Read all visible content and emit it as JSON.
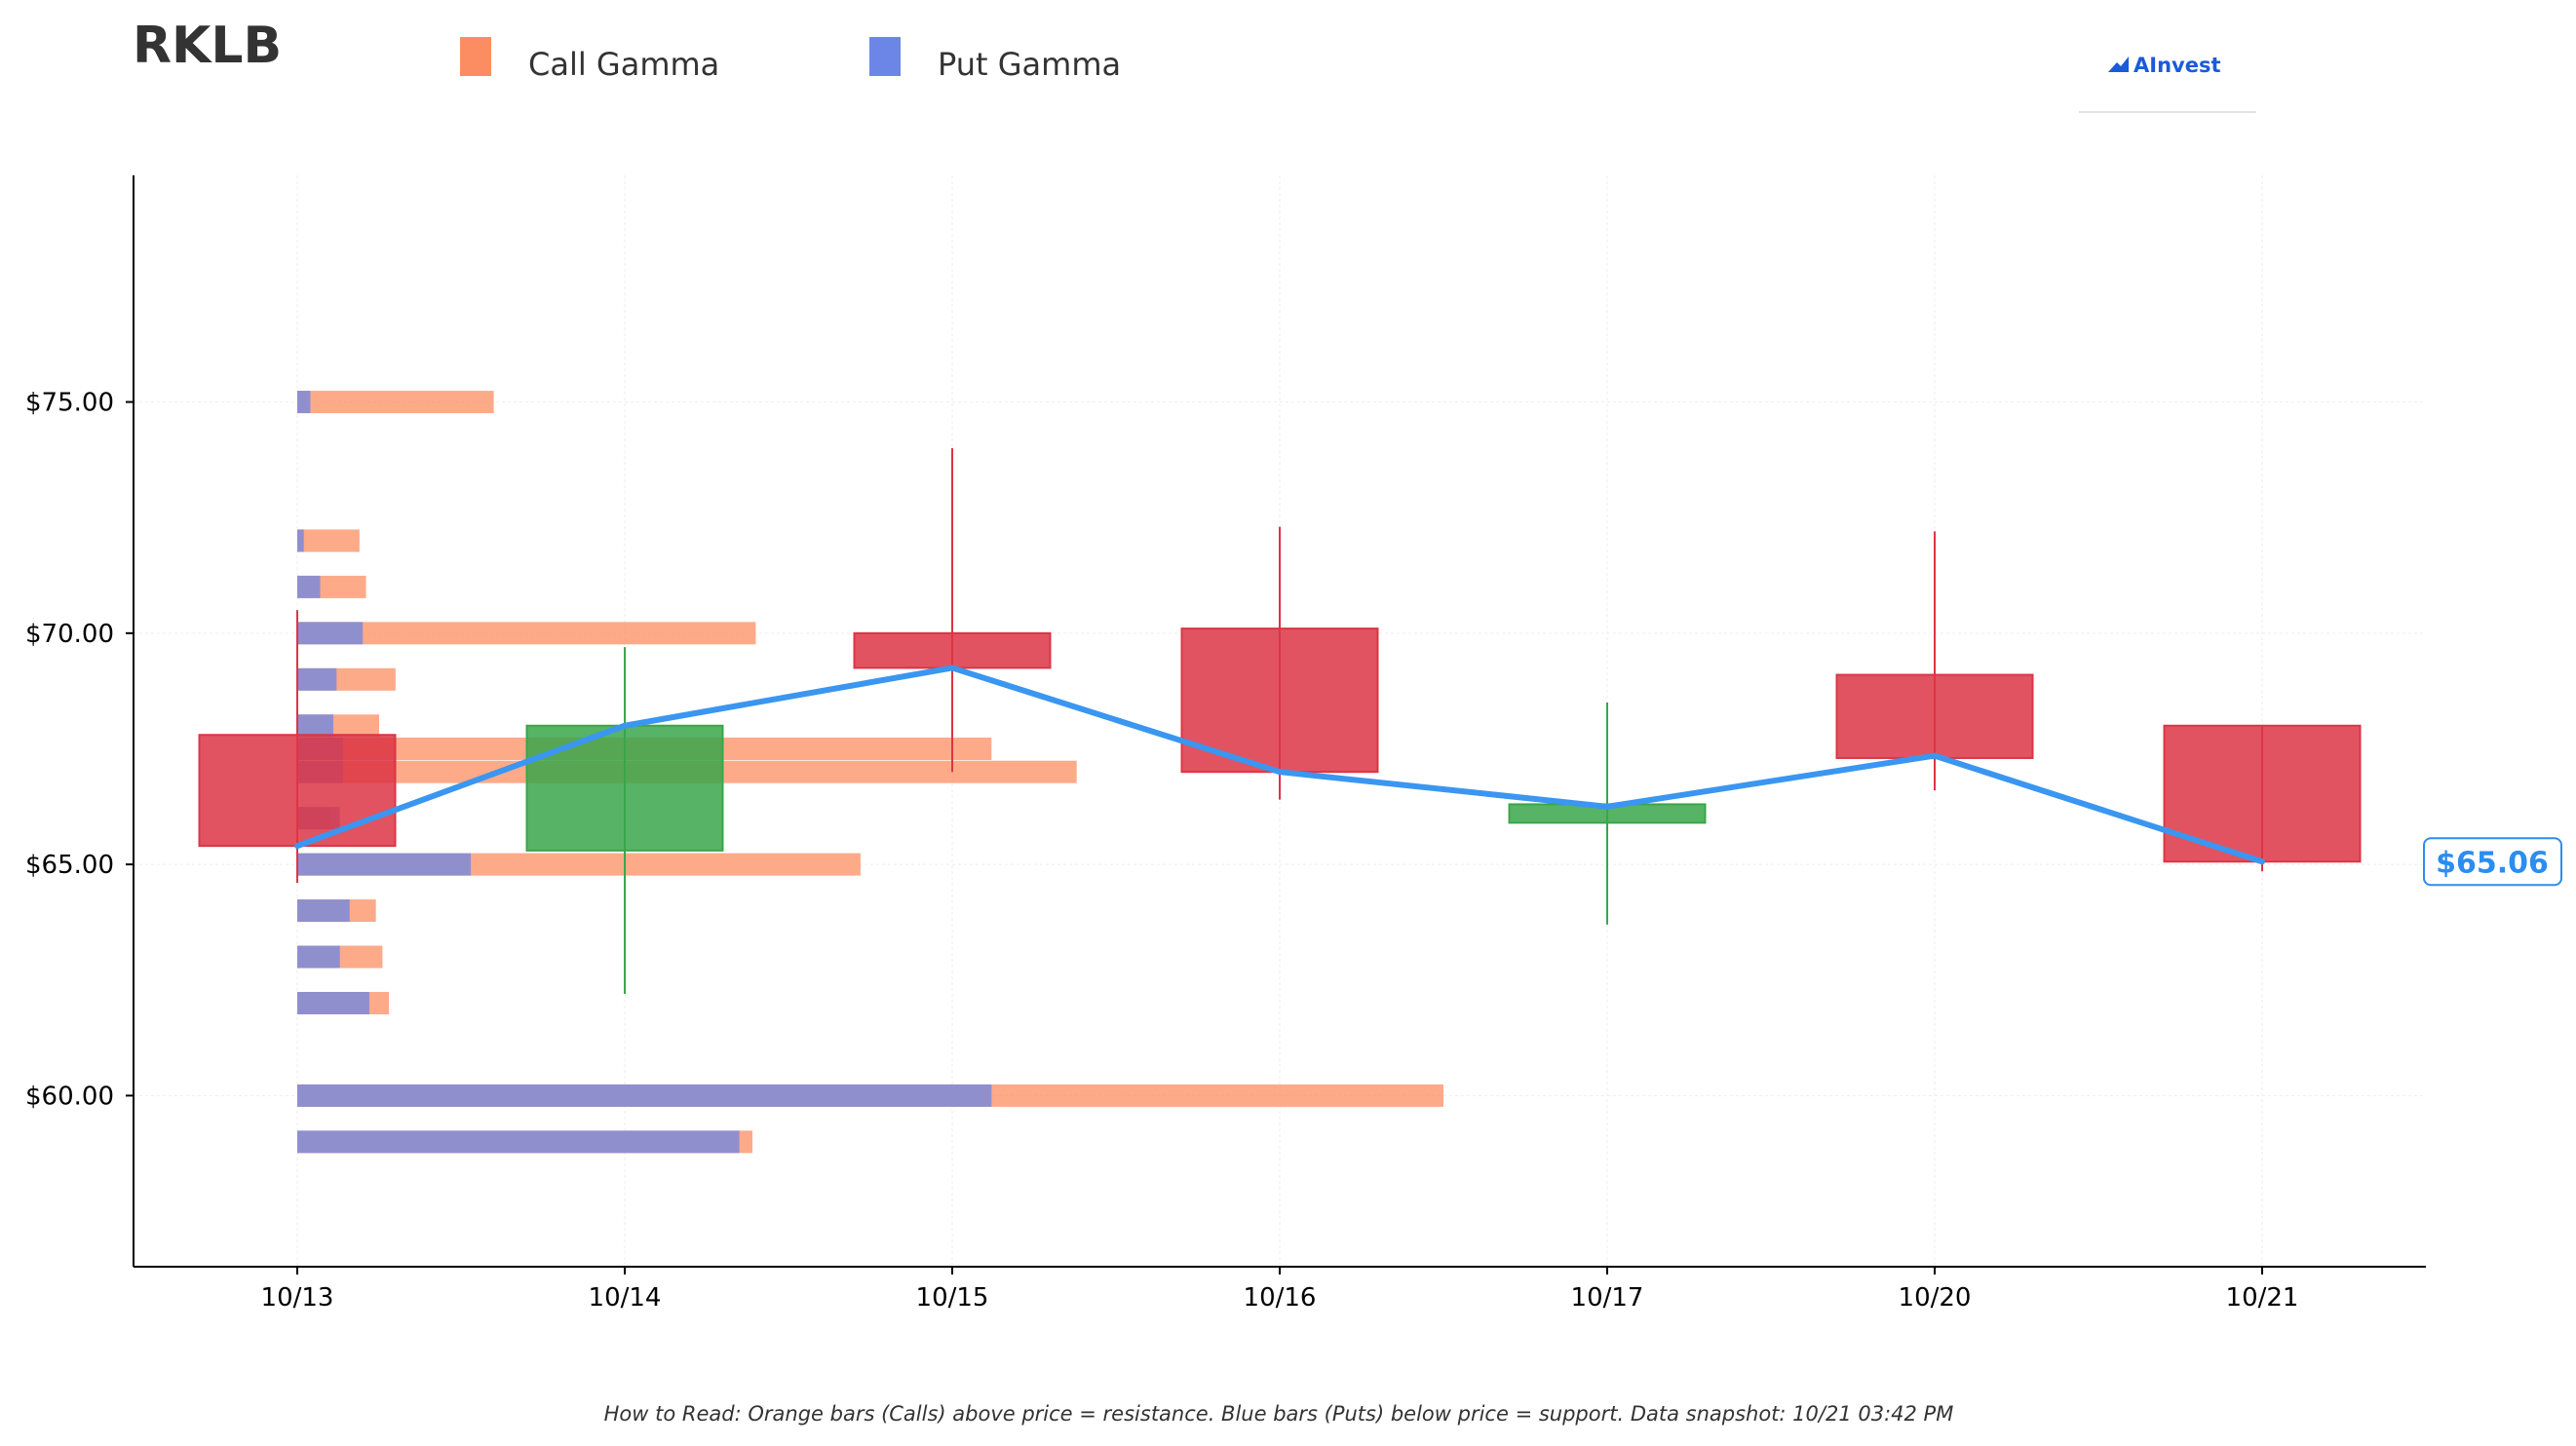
{
  "chart_data": {
    "type": "candlestick-gamma",
    "title": "RKLB",
    "brand": "AInvest",
    "legend": [
      {
        "label": "Call Gamma",
        "color": "#fc8d62"
      },
      {
        "label": "Put Gamma",
        "color": "#6b86e6"
      }
    ],
    "ylim": [
      56.3,
      79.9
    ],
    "y_ticks": [
      {
        "value": 60,
        "label": "$60.00"
      },
      {
        "value": 65,
        "label": "$65.00"
      },
      {
        "value": 70,
        "label": "$70.00"
      },
      {
        "value": 75,
        "label": "$75.00"
      }
    ],
    "categories": [
      "10/13",
      "10/14",
      "10/15",
      "10/16",
      "10/17",
      "10/20",
      "10/21"
    ],
    "candles": [
      {
        "date": "10/13",
        "open": 67.8,
        "close": 65.4,
        "high": 70.5,
        "low": 64.6
      },
      {
        "date": "10/14",
        "open": 65.3,
        "close": 68.0,
        "high": 69.7,
        "low": 62.2
      },
      {
        "date": "10/15",
        "open": 70.0,
        "close": 69.25,
        "high": 74.0,
        "low": 67.0
      },
      {
        "date": "10/16",
        "open": 70.1,
        "close": 67.0,
        "high": 72.3,
        "low": 66.4
      },
      {
        "date": "10/17",
        "open": 65.9,
        "close": 66.3,
        "high": 68.5,
        "low": 63.7
      },
      {
        "date": "10/20",
        "open": 69.1,
        "close": 67.3,
        "high": 72.2,
        "low": 66.6
      },
      {
        "date": "10/21",
        "open": 68.0,
        "close": 65.06,
        "high": 68.0,
        "low": 64.85
      }
    ],
    "close_line": [
      65.4,
      68.0,
      69.25,
      67.0,
      66.25,
      67.35,
      65.06
    ],
    "gamma_scale_max": 3.5,
    "gamma_levels": [
      {
        "strike": 75,
        "call": 0.6,
        "put": 0.04
      },
      {
        "strike": 72,
        "call": 0.19,
        "put": 0.02
      },
      {
        "strike": 71,
        "call": 0.21,
        "put": 0.07
      },
      {
        "strike": 70,
        "call": 1.4,
        "put": 0.2
      },
      {
        "strike": 69,
        "call": 0.3,
        "put": 0.12
      },
      {
        "strike": 68,
        "call": 0.25,
        "put": 0.11
      },
      {
        "strike": 67.5,
        "call": 2.12,
        "put": 0.14
      },
      {
        "strike": 67,
        "call": 2.38,
        "put": 0.14
      },
      {
        "strike": 66,
        "call": 0.1,
        "put": 0.13
      },
      {
        "strike": 65,
        "call": 1.72,
        "put": 0.53
      },
      {
        "strike": 64,
        "call": 0.24,
        "put": 0.16
      },
      {
        "strike": 63,
        "call": 0.26,
        "put": 0.13
      },
      {
        "strike": 62,
        "call": 0.28,
        "put": 0.22
      },
      {
        "strike": 60,
        "call": 3.5,
        "put": 2.12
      },
      {
        "strike": 59,
        "call": 1.39,
        "put": 1.35
      }
    ],
    "current_price_label": "$65.06",
    "colors": {
      "up": "#3aa64a",
      "down": "#dc3545",
      "line": "#3a96f0",
      "price_tag": "#2b8df0",
      "brand": "#1a5bd8"
    },
    "grid": true,
    "legend_position": "top",
    "footnote": "How to Read: Orange bars (Calls) above price = resistance. Blue bars (Puts) below price = support. Data snapshot: 10/21 03:42 PM"
  }
}
